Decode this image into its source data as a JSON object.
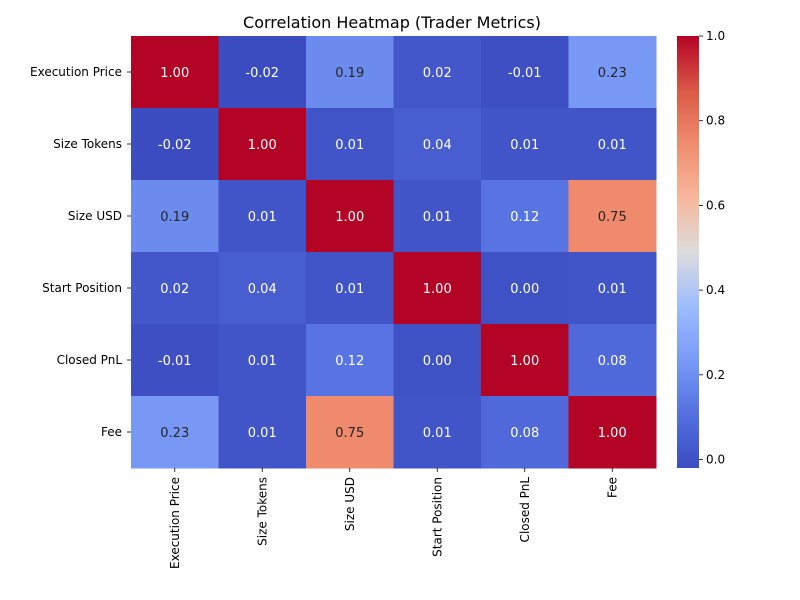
{
  "chart_data": {
    "type": "heatmap",
    "title": "Correlation Heatmap (Trader Metrics)",
    "rows": [
      "Execution Price",
      "Size Tokens",
      "Size USD",
      "Start Position",
      "Closed PnL",
      "Fee"
    ],
    "columns": [
      "Execution Price",
      "Size Tokens",
      "Size USD",
      "Start Position",
      "Closed PnL",
      "Fee"
    ],
    "values": [
      [
        1.0,
        -0.02,
        0.19,
        0.02,
        -0.01,
        0.23
      ],
      [
        -0.02,
        1.0,
        0.01,
        0.04,
        0.01,
        0.01
      ],
      [
        0.19,
        0.01,
        1.0,
        0.01,
        0.12,
        0.75
      ],
      [
        0.02,
        0.04,
        0.01,
        1.0,
        0.0,
        0.01
      ],
      [
        -0.01,
        0.01,
        0.12,
        0.0,
        1.0,
        0.08
      ],
      [
        0.23,
        0.01,
        0.75,
        0.01,
        0.08,
        1.0
      ]
    ],
    "value_format": "0.00",
    "colormap": "coolwarm",
    "colorbar": {
      "range": [
        -0.02,
        1.0
      ],
      "ticks": [
        "0.0",
        "0.2",
        "0.4",
        "0.6",
        "0.8",
        "1.0"
      ],
      "tick_values": [
        0.0,
        0.2,
        0.4,
        0.6,
        0.8,
        1.0
      ],
      "position": "right"
    },
    "xlabel": "",
    "ylabel": ""
  }
}
